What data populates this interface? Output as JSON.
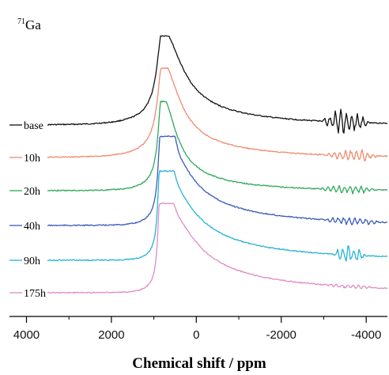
{
  "chart_data": {
    "type": "line",
    "nucleus": {
      "mass": "71",
      "element": "Ga"
    },
    "xlabel": "Chemical shift / ppm",
    "ylabel": "",
    "xlim": [
      4400,
      -4500
    ],
    "x_reversed": true,
    "xticks": [
      4000,
      2000,
      0,
      -2000,
      -4000
    ],
    "grid": false,
    "legend": "none",
    "series": [
      {
        "name": "base",
        "color": "#111111",
        "peak_ppm": 800,
        "peak_height": 1.0,
        "width_left": 420,
        "width_right": 1500,
        "shoulder": 0.0,
        "noise_ppm": [
          -2900,
          -4100
        ],
        "noise_amp": 0.28
      },
      {
        "name": "10h",
        "color": "#f08a6e",
        "peak_ppm": 800,
        "peak_height": 1.0,
        "width_left": 380,
        "width_right": 1300,
        "shoulder": 0.0,
        "noise_ppm": [
          -3000,
          -4300
        ],
        "noise_amp": 0.16
      },
      {
        "name": "20h",
        "color": "#2fa85a",
        "peak_ppm": 820,
        "peak_height": 1.0,
        "width_left": 260,
        "width_right": 1100,
        "shoulder": 0.0,
        "noise_ppm": [
          -2800,
          -4300
        ],
        "noise_amp": 0.1
      },
      {
        "name": "40h",
        "color": "#3b5cb8",
        "peak_ppm": 840,
        "peak_height": 1.0,
        "width_left": 200,
        "width_right": 1900,
        "shoulder": 0.25,
        "noise_ppm": [
          -2900,
          -4400
        ],
        "noise_amp": 0.09
      },
      {
        "name": "90h",
        "color": "#27b3d6",
        "peak_ppm": 860,
        "peak_height": 1.0,
        "width_left": 160,
        "width_right": 2100,
        "shoulder": 0.18,
        "noise_ppm": [
          -3200,
          -4000
        ],
        "noise_amp": 0.22
      },
      {
        "name": "175h",
        "color": "#e08cc4",
        "peak_ppm": 860,
        "peak_height": 1.0,
        "width_left": 160,
        "width_right": 2300,
        "shoulder": 0.1,
        "noise_ppm": [
          -3000,
          -4300
        ],
        "noise_amp": 0.05
      }
    ]
  }
}
